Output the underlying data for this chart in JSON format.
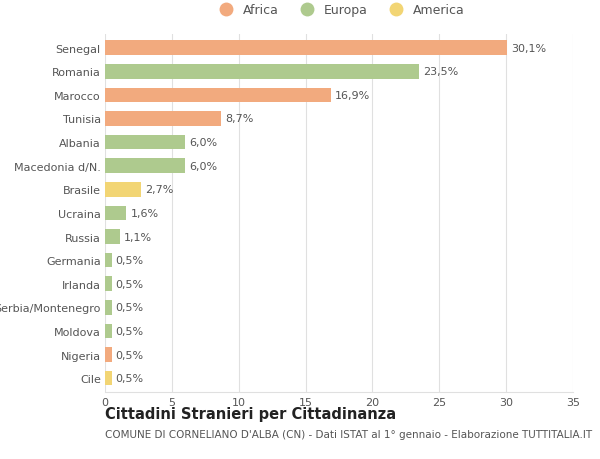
{
  "categories": [
    "Senegal",
    "Romania",
    "Marocco",
    "Tunisia",
    "Albania",
    "Macedonia d/N.",
    "Brasile",
    "Ucraina",
    "Russia",
    "Germania",
    "Irlanda",
    "Serbia/Montenegro",
    "Moldova",
    "Nigeria",
    "Cile"
  ],
  "values": [
    30.1,
    23.5,
    16.9,
    8.7,
    6.0,
    6.0,
    2.7,
    1.6,
    1.1,
    0.5,
    0.5,
    0.5,
    0.5,
    0.5,
    0.5
  ],
  "labels": [
    "30,1%",
    "23,5%",
    "16,9%",
    "8,7%",
    "6,0%",
    "6,0%",
    "2,7%",
    "1,6%",
    "1,1%",
    "0,5%",
    "0,5%",
    "0,5%",
    "0,5%",
    "0,5%",
    "0,5%"
  ],
  "continents": [
    "Africa",
    "Europa",
    "Africa",
    "Africa",
    "Europa",
    "Europa",
    "America",
    "Europa",
    "Europa",
    "Europa",
    "Europa",
    "Europa",
    "Europa",
    "Africa",
    "America"
  ],
  "colors": {
    "Africa": "#F2AA7E",
    "Europa": "#AECA8E",
    "America": "#F2D574"
  },
  "legend_order": [
    "Africa",
    "Europa",
    "America"
  ],
  "xlim": [
    0,
    35
  ],
  "xticks": [
    0,
    5,
    10,
    15,
    20,
    25,
    30,
    35
  ],
  "title": "Cittadini Stranieri per Cittadinanza",
  "subtitle": "COMUNE DI CORNELIANO D'ALBA (CN) - Dati ISTAT al 1° gennaio - Elaborazione TUTTITALIA.IT",
  "background_color": "#ffffff",
  "grid_color": "#e0e0e0",
  "bar_height": 0.62,
  "label_fontsize": 8.0,
  "tick_fontsize": 8.0,
  "title_fontsize": 10.5,
  "subtitle_fontsize": 7.5
}
